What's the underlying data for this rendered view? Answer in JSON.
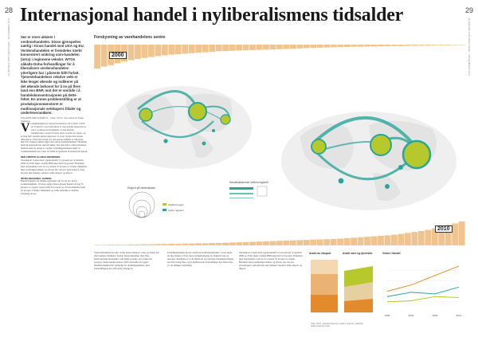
{
  "page": {
    "left_number": "28",
    "right_number": "29",
    "left_meta": "LE MONDE DIPLOMATIQUE · NOVEMBER 2011",
    "right_meta": "LE MONDE DIPLOMATIQUE · NOVEMBER 2011"
  },
  "article": {
    "title": "Internasjonal handel i nyliberalismens tidsalder",
    "lead": "Sør er store aktører i verdenshandelen. Disse gjenspeiles særlig i Kinas handel med USA og EU. Verdenshandelen er fremdeles sterkt konsentrert omkring som-handelen (intra) i regionene veksler. WTOs såkalte Doha-forhandlinger for å liberalisere verdenshandelen ytterligere har i påvente blitt forlatt. Tjenestehandelens relative vekt er ikke lenger økende og indikerer på det økende behovet for å se på flere land enn BNP, mot det et område i å handelskonsentrasjonen på dette feltet. En annen problemstilling er at produksjonsmønsteret er mutlinasjonale selskapers filialer og underleverandører.",
    "byline": "PHILIPPE REKACEWICZ · Kilde: WTO, International Trade Statistics",
    "dropcap": "V",
    "body": "erdenshandelen er fortsatt konsentrert om fa land. I 2010 sto ti land for over halvparten av den globale eksporten av varer og nesten tre fjerdedeler av den globale vareimporten. I noen få år har Kina overtatt for Japan, og er idag blitt verdens største eksportør av varer og den nest største importøren. USA står fortsatt for den største andelen av importen, men EU-landene samlet utgjør den største handelsblokken. Handelen mellom regionene har økt betydelig i det siste tiåret, særlig handelen mellom Asia og resten av verden. Utviklingslandenes andel av verdenshandelen har vokst fra rundt en fjerdedel til nesten halvparten.",
    "subhead_1": "DEN FØRSTE GLOBALISERINGEN",
    "body_2": "Vareeksport vokste med i gjennomsnitt 5,2 prosent per år mellom 2000 og 2010, mens verdens BNP økte med 2,6 prosent. Handelen med bearbeidede varer sto for nesten 70 prosent av totalen. Handelen med jordbruksprodukter og råvarer har vist stor prisvariasjon. Asia har hatt den raskeste veksten i både eksport og import.",
    "subhead_2": "INTRA-REGIONAL HANDEL",
    "body_3": "Handel innenfor de samme regionene står for en stor del av verdenshandelen. I Europa utgjør intra-regional handel om lag 70 prosent av totalen, i Asia rundt 50 prosent og i Nord-Amerika rundt 50 prosent. I Afrika, Midtøsten og Latin-Amerika er andelen betydelig lavere.",
    "body_4": "Tjenestehandelen har økt, særlig innen transport, reise og finans. De rike landene dominerer fortsatt denne handelen, men flere fremvoksende økonomier, som India og Kina, har styrket sin posisjon. Doha-runden startet i 2001 med mål om å gjøre handelssystemet mer rettferdig for utviklingslandene, men forhandlingene har stått stille i mange år.",
    "body_5": "Utviklingslandene krever reduserte landbrukssubsidier i nord, mens de rike landene vil ha større markedsadgang for industrivarer og tjenester. Resultatet er at de bilaterale og regionale frihandelsavtalene har blitt stadig flere, og at multilaterale forhandlinger har mistet mye av sin tidligere betydning."
  },
  "main_chart": {
    "title": "Forskyvning av varehandelens sentre",
    "year_top": "2000",
    "year_bottom": "2010",
    "legend_bubble_title": "Eksport på verdensbasis",
    "legend_flow_title": "Handelsstrømmer mellom regioner",
    "legend_region_a": "Utvikled region",
    "legend_region_b": "Andre regioner"
  },
  "mini_charts": {
    "a_title": "Andel av eksport",
    "b_title": "Andel vare og tjenester",
    "c_title": "Vekst i handel"
  },
  "note": "Kilde: WTO. Handelsstrømmer mellom regioner, milliarder dollar, løpende priser.",
  "colors": {
    "teal": "#2aa59a",
    "lime": "#b6c82b",
    "orange": "#e38b2c",
    "land": "#ececec"
  },
  "chart_data": [
    {
      "type": "bar",
      "title": "Forskyvning av varehandelens sentre",
      "note": "Horizontal ranking bars (2000 top, 2010 bottom)",
      "series": [
        {
          "name": "2000",
          "values": [
            100,
            92,
            86,
            78,
            71,
            65,
            60,
            56,
            52,
            48,
            45,
            42,
            40,
            38,
            36,
            34,
            32,
            30,
            28,
            27,
            26,
            25,
            24,
            23,
            22,
            21,
            20,
            19,
            18,
            17,
            16,
            15,
            14,
            13,
            12,
            11,
            10,
            10,
            9,
            9,
            8,
            8,
            7,
            7,
            6,
            6,
            5,
            5,
            4,
            4,
            3,
            3,
            3,
            2,
            2
          ]
        },
        {
          "name": "2010",
          "values": [
            2,
            2,
            3,
            3,
            3,
            4,
            4,
            5,
            5,
            6,
            6,
            7,
            7,
            8,
            8,
            9,
            9,
            10,
            10,
            11,
            12,
            13,
            14,
            15,
            16,
            17,
            18,
            19,
            20,
            21,
            22,
            23,
            24,
            25,
            26,
            27,
            28,
            30,
            32,
            34,
            36,
            38,
            40,
            42,
            45,
            48,
            52,
            56,
            60,
            65,
            71,
            78,
            86,
            92,
            100
          ]
        }
      ]
    },
    {
      "type": "line",
      "title": "Vekst i handel",
      "x": [
        1995,
        2000,
        2005,
        2010
      ],
      "series": [
        {
          "name": "",
          "values": [
            40,
            52,
            70,
            88
          ]
        },
        {
          "name": "",
          "values": [
            30,
            38,
            35,
            48
          ]
        },
        {
          "name": "",
          "values": [
            20,
            22,
            30,
            28
          ]
        }
      ]
    }
  ]
}
